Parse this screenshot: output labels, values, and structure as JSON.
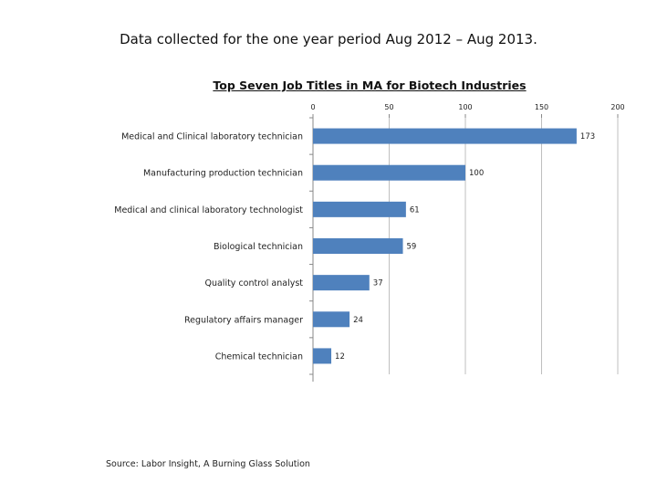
{
  "header": {
    "text": "Data collected for the one year period Aug 2012 – Aug 2013."
  },
  "source": {
    "text": "Source: Labor Insight, A Burning Glass Solution"
  },
  "chart_data": {
    "type": "bar",
    "orientation": "horizontal",
    "title": "Top Seven Job Titles in MA for Biotech Industries",
    "categories": [
      "Medical and Clinical laboratory technician",
      "Manufacturing production technician",
      "Medical and clinical laboratory technologist",
      "Biological technician",
      "Quality control analyst",
      "Regulatory affairs manager",
      "Chemical technician"
    ],
    "values": [
      173,
      100,
      61,
      59,
      37,
      24,
      12
    ],
    "xlim": [
      0,
      200
    ],
    "xticks": [
      0,
      50,
      100,
      150,
      200
    ],
    "grid": true,
    "bar_color": "#4f81bd",
    "grid_color": "#bfbfbf",
    "data_labels": true
  }
}
